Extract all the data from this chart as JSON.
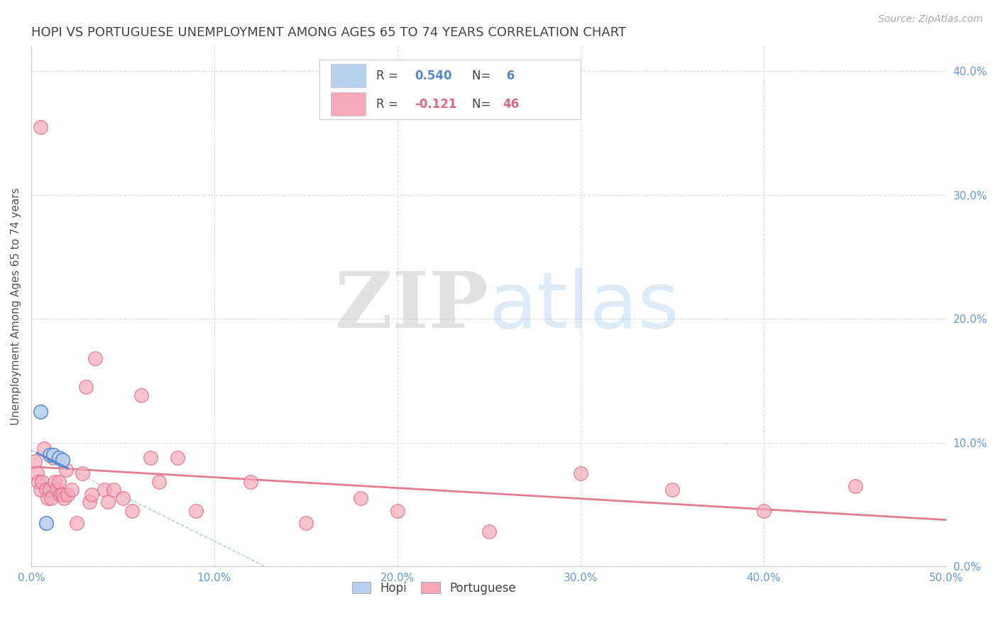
{
  "title": "HOPI VS PORTUGUESE UNEMPLOYMENT AMONG AGES 65 TO 74 YEARS CORRELATION CHART",
  "source": "Source: ZipAtlas.com",
  "ylabel": "Unemployment Among Ages 65 to 74 years",
  "xlim": [
    0.0,
    50.0
  ],
  "ylim": [
    0.0,
    42.0
  ],
  "xticks": [
    0.0,
    10.0,
    20.0,
    30.0,
    40.0,
    50.0
  ],
  "yticks": [
    0.0,
    10.0,
    20.0,
    30.0,
    40.0
  ],
  "hopi_R": 0.54,
  "hopi_N": 6,
  "port_R": -0.121,
  "port_N": 46,
  "hopi_color": "#b8d0ee",
  "port_color": "#f4a8b8",
  "hopi_line_color": "#5588cc",
  "port_line_color": "#dd6680",
  "grid_color": "#dddddd",
  "axis_label_color": "#6699dd",
  "title_color": "#444444",
  "hopi_points": [
    [
      0.5,
      12.5
    ],
    [
      1.0,
      9.0
    ],
    [
      1.2,
      9.0
    ],
    [
      1.5,
      8.8
    ],
    [
      1.7,
      8.6
    ],
    [
      0.8,
      3.5
    ]
  ],
  "port_points": [
    [
      0.5,
      35.5
    ],
    [
      0.2,
      8.5
    ],
    [
      0.3,
      7.5
    ],
    [
      0.4,
      6.8
    ],
    [
      0.5,
      6.2
    ],
    [
      0.6,
      6.8
    ],
    [
      0.7,
      9.5
    ],
    [
      0.8,
      6.2
    ],
    [
      0.9,
      5.5
    ],
    [
      1.0,
      6.2
    ],
    [
      1.1,
      5.5
    ],
    [
      1.2,
      8.8
    ],
    [
      1.3,
      6.8
    ],
    [
      1.4,
      6.2
    ],
    [
      1.5,
      6.8
    ],
    [
      1.6,
      5.8
    ],
    [
      1.7,
      5.8
    ],
    [
      1.8,
      5.5
    ],
    [
      1.9,
      7.8
    ],
    [
      2.0,
      5.8
    ],
    [
      2.2,
      6.2
    ],
    [
      2.5,
      3.5
    ],
    [
      2.8,
      7.5
    ],
    [
      3.0,
      14.5
    ],
    [
      3.2,
      5.2
    ],
    [
      3.3,
      5.8
    ],
    [
      3.5,
      16.8
    ],
    [
      4.0,
      6.2
    ],
    [
      4.2,
      5.2
    ],
    [
      4.5,
      6.2
    ],
    [
      5.0,
      5.5
    ],
    [
      5.5,
      4.5
    ],
    [
      6.0,
      13.8
    ],
    [
      6.5,
      8.8
    ],
    [
      7.0,
      6.8
    ],
    [
      8.0,
      8.8
    ],
    [
      9.0,
      4.5
    ],
    [
      12.0,
      6.8
    ],
    [
      15.0,
      3.5
    ],
    [
      18.0,
      5.5
    ],
    [
      20.0,
      4.5
    ],
    [
      25.0,
      2.8
    ],
    [
      30.0,
      7.5
    ],
    [
      35.0,
      6.2
    ],
    [
      40.0,
      4.5
    ],
    [
      45.0,
      6.5
    ]
  ]
}
